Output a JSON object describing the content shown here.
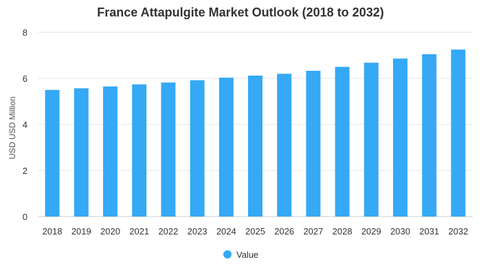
{
  "chart_data": {
    "type": "bar",
    "title": "France Attapulgite Market Outlook (2018 to 2032)",
    "xlabel": "",
    "ylabel": "USD USD Million",
    "categories": [
      "2018",
      "2019",
      "2020",
      "2021",
      "2022",
      "2023",
      "2024",
      "2025",
      "2026",
      "2027",
      "2028",
      "2029",
      "2030",
      "2031",
      "2032"
    ],
    "series": [
      {
        "name": "Value",
        "values": [
          5.5,
          5.57,
          5.65,
          5.74,
          5.82,
          5.92,
          6.03,
          6.12,
          6.2,
          6.33,
          6.5,
          6.68,
          6.86,
          7.05,
          7.25
        ]
      }
    ],
    "ylim": [
      0,
      8
    ],
    "yticks": [
      0,
      2,
      4,
      6,
      8
    ],
    "grid": true,
    "legend": "bottom",
    "bar_color": "#35a9f5"
  }
}
